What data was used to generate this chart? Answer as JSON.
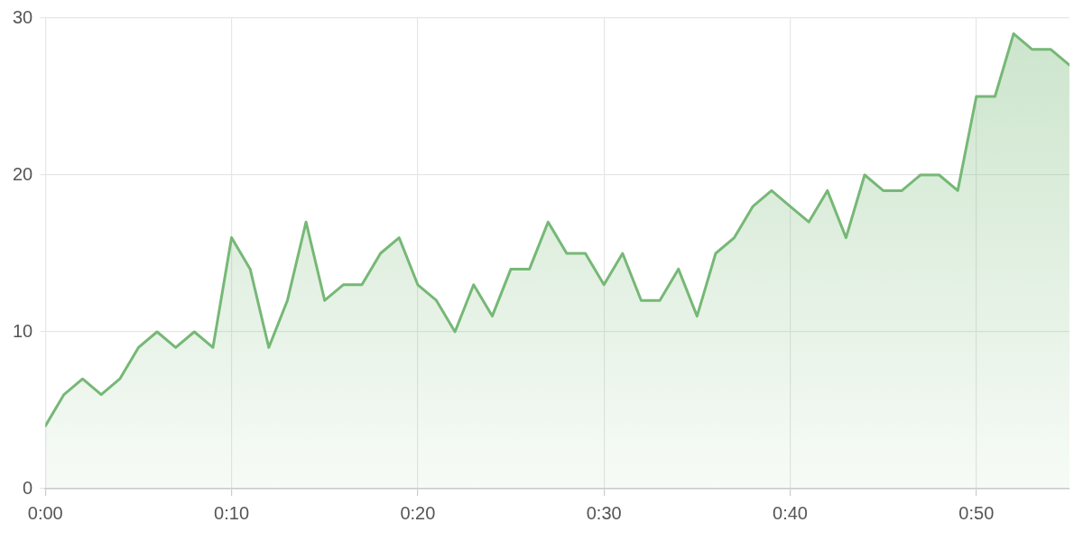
{
  "chart_data": {
    "type": "area",
    "x": [
      0,
      1,
      2,
      3,
      4,
      5,
      6,
      7,
      8,
      9,
      10,
      11,
      12,
      13,
      14,
      15,
      16,
      17,
      18,
      19,
      20,
      21,
      22,
      23,
      24,
      25,
      26,
      27,
      28,
      29,
      30,
      31,
      32,
      33,
      34,
      35,
      36,
      37,
      38,
      39,
      40,
      41,
      42,
      43,
      44,
      45,
      46,
      47,
      48,
      49,
      50,
      51,
      52,
      53,
      54,
      55
    ],
    "series": [
      {
        "color": "#76b876",
        "values": [
          4,
          6,
          7,
          6,
          7,
          9,
          10,
          9,
          10,
          9,
          16,
          14,
          9,
          12,
          17,
          12,
          13,
          13,
          15,
          16,
          13,
          12,
          10,
          13,
          11,
          14,
          14,
          17,
          15,
          15,
          13,
          15,
          12,
          12,
          14,
          11,
          15,
          16,
          18,
          19,
          18,
          17,
          19,
          16,
          20,
          19,
          19,
          20,
          20,
          19,
          25,
          25,
          29,
          28,
          28,
          27
        ]
      }
    ],
    "xlim": [
      0,
      55
    ],
    "xticks": [
      {
        "value": 0,
        "label": "0:00"
      },
      {
        "value": 10,
        "label": "0:10"
      },
      {
        "value": 20,
        "label": "0:20"
      },
      {
        "value": 30,
        "label": "0:30"
      },
      {
        "value": 40,
        "label": "0:40"
      },
      {
        "value": 50,
        "label": "0:50"
      }
    ],
    "ylim": [
      0,
      30
    ],
    "yticks": [
      0,
      10,
      20,
      30
    ],
    "grid": true,
    "legend": false,
    "marker": "none",
    "line_style": "solid"
  }
}
